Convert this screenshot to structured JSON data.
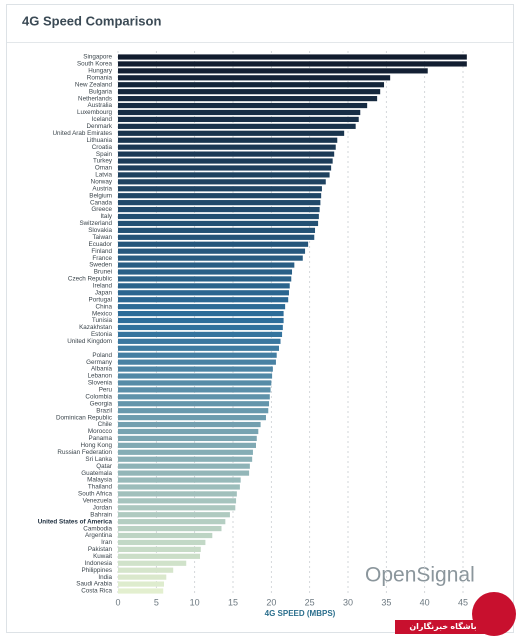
{
  "chart_data": {
    "type": "barh",
    "title": "4G Speed Comparison",
    "categories": [
      "Singapore",
      "South Korea",
      "Hungary",
      "Romania",
      "New Zealand",
      "Bulgaria",
      "Netherlands",
      "Australia",
      "Luxembourg",
      "Iceland",
      "Denmark",
      "United Arab Emirates",
      "Lithuania",
      "Croatia",
      "Spain",
      "Turkey",
      "Oman",
      "Latvia",
      "Norway",
      "Austria",
      "Belgium",
      "Canada",
      "Greece",
      "Italy",
      "Switzerland",
      "Slovakia",
      "Taiwan",
      "Ecuador",
      "Finland",
      "France",
      "Sweden",
      "Brunei",
      "Czech Republic",
      "Ireland",
      "Japan",
      "Portugal",
      "China",
      "Mexico",
      "Tunisia",
      "Kazakhstan",
      "Estonia",
      "United Kingdom",
      null,
      "Poland",
      "Germany",
      "Albania",
      "Lebanon",
      "Slovenia",
      "Peru",
      "Colombia",
      "Georgia",
      "Brazil",
      "Dominican Republic",
      "Chile",
      "Morocco",
      "Panama",
      "Hong Kong",
      "Russian Federation",
      "Sri Lanka",
      "Qatar",
      "Guatemala",
      "Malaysia",
      "Thailand",
      "South Africa",
      "Venezuela",
      "Jordan",
      "Bahrain",
      "United States of America",
      "Cambodia",
      "Argentina",
      "Iran",
      "Pakistan",
      "Kuwait",
      "Indonesia",
      "Philippines",
      "India",
      "Saudi Arabia",
      "Costa Rica"
    ],
    "values": [
      45.5,
      45.5,
      40.4,
      35.5,
      34.7,
      34.2,
      33.8,
      32.5,
      31.6,
      31.4,
      31.0,
      29.5,
      28.6,
      28.4,
      28.2,
      28.0,
      27.8,
      27.6,
      27.1,
      26.6,
      26.5,
      26.4,
      26.3,
      26.2,
      26.1,
      25.7,
      25.6,
      24.8,
      24.4,
      24.1,
      23.0,
      22.7,
      22.6,
      22.4,
      22.3,
      22.2,
      21.8,
      21.6,
      21.6,
      21.5,
      21.4,
      21.2,
      21.0,
      20.7,
      20.6,
      20.2,
      20.1,
      20.0,
      19.9,
      19.8,
      19.7,
      19.6,
      19.3,
      18.6,
      18.3,
      18.1,
      18.0,
      17.6,
      17.5,
      17.2,
      17.1,
      16.0,
      15.9,
      15.5,
      15.4,
      15.3,
      14.6,
      14.0,
      13.5,
      12.3,
      11.4,
      10.8,
      10.7,
      8.9,
      7.2,
      6.3,
      6.0,
      5.9
    ],
    "color_stops": [
      "#111c2e",
      "#2e6f9c",
      "#e3efcf"
    ],
    "highlight": 67,
    "xlim": [
      0,
      47.5
    ],
    "xticks": [
      0,
      5,
      10,
      15,
      20,
      25,
      30,
      35,
      40,
      45
    ],
    "xlabel": "4G SPEED (MBPS)",
    "grid": true,
    "watermark": "OpenSignal",
    "logo_text": "باشگاه خبرنگاران"
  }
}
